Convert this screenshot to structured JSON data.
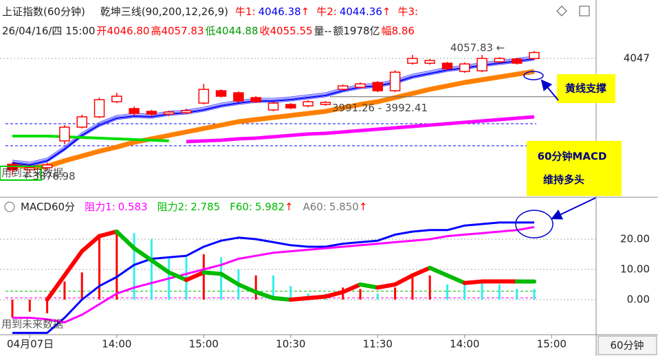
{
  "chart_data": [
    {
      "type": "candlestick",
      "title": "上证指数(60分钟)",
      "indicator": "乾坤三线(90,200,12,26,9)",
      "legend": [
        {
          "name": "牛1:",
          "value": "4046.38",
          "mark": "↑"
        },
        {
          "name": "牛2:",
          "value": "4044.36",
          "mark": "↑"
        },
        {
          "name": "牛3:"
        }
      ],
      "info": [
        {
          "text": "26/04/16/四 15:00",
          "color": "#222222"
        },
        {
          "text": "开4046.80",
          "color": "#ff0000"
        },
        {
          "text": "高4057.83",
          "color": "#ff0000"
        },
        {
          "text": "低4044.88",
          "color": "#009900"
        },
        {
          "text": "收4055.55",
          "color": "#ff0000"
        },
        {
          "text": "量--",
          "color": "#222222"
        },
        {
          "text": "额1978亿",
          "color": "#222222"
        },
        {
          "text": "幅8.86",
          "color": "#ff0000"
        }
      ],
      "open": [
        3893,
        3885,
        3888,
        3927,
        3947,
        3962,
        3984,
        3974,
        3970,
        3966,
        3968,
        3982,
        4000,
        3997,
        3990,
        3972,
        3980,
        3978,
        3980,
        4002,
        4005,
        4012,
        4000,
        4040,
        4040,
        4040,
        4028,
        4029,
        4042,
        4046,
        4046.8,
        null
      ],
      "high": [
        3896,
        3890,
        3895,
        3950,
        3965,
        3990,
        3997,
        3977,
        3972,
        3971,
        3974,
        4010,
        4002,
        3999,
        3992,
        3984,
        3982,
        3986,
        3985,
        4009,
        4012,
        4014,
        4030,
        4052,
        4046,
        4042,
        4041,
        4052,
        4049,
        4048,
        4057.83,
        null
      ],
      "low": [
        3876.98,
        3880,
        3884,
        3922,
        3945,
        3960,
        3982,
        3963,
        3962,
        3963,
        3966,
        3980,
        3990,
        3983,
        3982,
        3970,
        3973,
        3976,
        3978,
        4000,
        4003,
        3998,
        3998,
        4038,
        4038,
        4030,
        4026,
        4027,
        4040,
        4038,
        4044.88,
        null
      ],
      "close": [
        3885,
        3888,
        3892,
        3947,
        3962,
        3987,
        3992,
        3967,
        3966,
        3969,
        3971,
        4002,
        3992,
        3985,
        3984,
        3982,
        3975,
        3984,
        3983,
        4007,
        4010,
        4000,
        4027,
        4047,
        4044,
        4032,
        4039,
        4047,
        4047,
        4040,
        4055.55,
        null
      ],
      "color": "#ff0000",
      "series": [
        {
          "color": "#ff8000",
          "values": [
            3893,
            3888,
            3890,
            3898,
            3905,
            3912,
            3918,
            3925,
            3930,
            3935,
            3940,
            3945,
            3950,
            3955,
            3958,
            3961,
            3964,
            3967,
            3970,
            3975,
            3980,
            3984,
            3990,
            3996,
            4002,
            4007,
            4012,
            4016,
            4020,
            4024,
            4028,
            null
          ]
        },
        {
          "color": "#0000ff",
          "values": [
            3895,
            3892,
            3898,
            3915,
            3935,
            3950,
            3960,
            3963,
            3962,
            3966,
            3968,
            3972,
            3978,
            3982,
            3985,
            3985,
            3987,
            3990,
            3993,
            4000,
            4005,
            4007,
            4012,
            4020,
            4025,
            4030,
            4033,
            4037,
            4040,
            4043,
            4046.38,
            null
          ]
        },
        {
          "color": "#ff00ff",
          "values": [
            null,
            null,
            null,
            null,
            null,
            null,
            null,
            null,
            null,
            null,
            3926,
            3927,
            3928,
            3930,
            3931,
            3933,
            3935,
            3937,
            3938,
            3940,
            3942,
            3944,
            3946,
            3948,
            3950,
            3952,
            3954,
            3956,
            3958,
            3960,
            3962,
            null
          ]
        },
        {
          "color": "#00dd00",
          "values": [
            3934,
            3934,
            3934,
            3933,
            3932,
            3931,
            3930,
            3929,
            3928,
            3927,
            null,
            null,
            null,
            null,
            null,
            null,
            null,
            null,
            null,
            null,
            null,
            null,
            null,
            null,
            null,
            null,
            null,
            null,
            null,
            null,
            null,
            null
          ]
        }
      ],
      "hlines": [
        {
          "value": 3952,
          "color": "#0000ff"
        },
        {
          "value": 3920,
          "color": "#0000ff"
        }
      ],
      "annotations": [
        {
          "text": "4057.83 ←",
          "value": 4057.83
        },
        {
          "text": "3991.26 - 3992.41",
          "value": 3991.26
        },
        {
          "text": "←3876.98",
          "value": 3876.98
        }
      ],
      "ylim": [
        3847,
        4072
      ],
      "yticks": [
        4047
      ],
      "grid": true
    },
    {
      "type": "line",
      "title": "MACD60分",
      "legend": [
        {
          "name": "阻力1:",
          "value": 0.583,
          "color": "#ff00ff"
        },
        {
          "name": "阻力2:",
          "value": 2.785,
          "color": "#00bb00"
        },
        {
          "name": "F60:",
          "value": 5.982,
          "mark": "↑",
          "color": "#00bb00"
        },
        {
          "name": "A60:",
          "value": 5.85,
          "value_label": "5.850",
          "mark": "↑",
          "color": "#777777"
        }
      ],
      "categories": [
        null,
        "04月07日",
        null,
        null,
        null,
        null,
        "14:00",
        null,
        null,
        null,
        null,
        "15:00",
        null,
        null,
        null,
        null,
        "10:30",
        null,
        null,
        null,
        null,
        "11:30",
        null,
        null,
        null,
        null,
        "14:00",
        null,
        null,
        null,
        null,
        "15:00"
      ],
      "bars": {
        "values": [
          -6,
          -4,
          -4.5,
          6,
          9,
          21,
          22,
          22,
          20,
          14,
          14,
          15,
          14,
          10,
          8,
          8,
          4.5,
          2,
          2,
          4,
          3.5,
          2,
          4,
          8,
          8,
          5,
          5.5,
          5.5,
          5,
          3.5,
          3.5,
          null
        ],
        "colors": [
          "#ff0000",
          "#ff0000",
          "#ff0000",
          "#ff0000",
          "#ff0000",
          "#ff0000",
          "#ff0000",
          "#33eeee",
          "#33eeee",
          "#33eeee",
          "#33eeee",
          "#ff0000",
          "#33eeee",
          "#33eeee",
          "#ff0000",
          "#33eeee",
          "#33eeee",
          "#33eeee",
          "#33eeee",
          "#ff0000",
          "#ff0000",
          "#33eeee",
          "#ff0000",
          "#ff0000",
          "#ff0000",
          "#33eeee",
          "#33eeee",
          "#33eeee",
          "#33eeee",
          "#33eeee",
          "#33eeee",
          null
        ]
      },
      "series": [
        {
          "color": "#0000ff",
          "values": [
            -11,
            -11,
            -11,
            -6,
            0,
            4.5,
            7.5,
            11.5,
            13.5,
            14,
            14.5,
            17.5,
            19.5,
            20.5,
            20,
            19,
            18,
            17.5,
            17.5,
            18.5,
            19,
            19.5,
            21.5,
            22.5,
            23,
            23,
            24.5,
            25,
            25.5,
            25.5,
            25.5,
            null
          ]
        },
        {
          "color": "#ff00ff",
          "values": [
            -6,
            -6,
            -6.5,
            -7.5,
            -5,
            -1.5,
            2,
            4,
            5.5,
            7,
            8.5,
            10,
            11.5,
            13.5,
            14.5,
            15.5,
            16,
            16.5,
            17,
            17.5,
            18,
            18.5,
            19,
            19.5,
            20,
            21,
            21.5,
            22,
            22.5,
            23,
            24,
            null
          ]
        },
        {
          "up_color": "#ff0000",
          "down_color": "#00bb00",
          "values": [
            null,
            null,
            0,
            8,
            16,
            21,
            22.5,
            17,
            13,
            9,
            6.5,
            9,
            8.5,
            5,
            2.5,
            0.5,
            0,
            0.5,
            1,
            2.5,
            5,
            4,
            5,
            8,
            10.5,
            8,
            5.5,
            6,
            6,
            6,
            5.982,
            null
          ]
        }
      ],
      "ylim": [
        -11.6,
        30.9
      ],
      "yticks": [
        {
          "value": 0,
          "label": "0.00"
        },
        {
          "value": 10,
          "label": "10.00"
        },
        {
          "value": 20,
          "label": "20.00"
        }
      ],
      "grid": true
    }
  ],
  "watermarks": [
    "用到未来数据",
    "用到未来数据"
  ],
  "callouts": [
    "黄线支撑",
    "60分钟MACD",
    "维持多头"
  ],
  "period": "60分钟"
}
